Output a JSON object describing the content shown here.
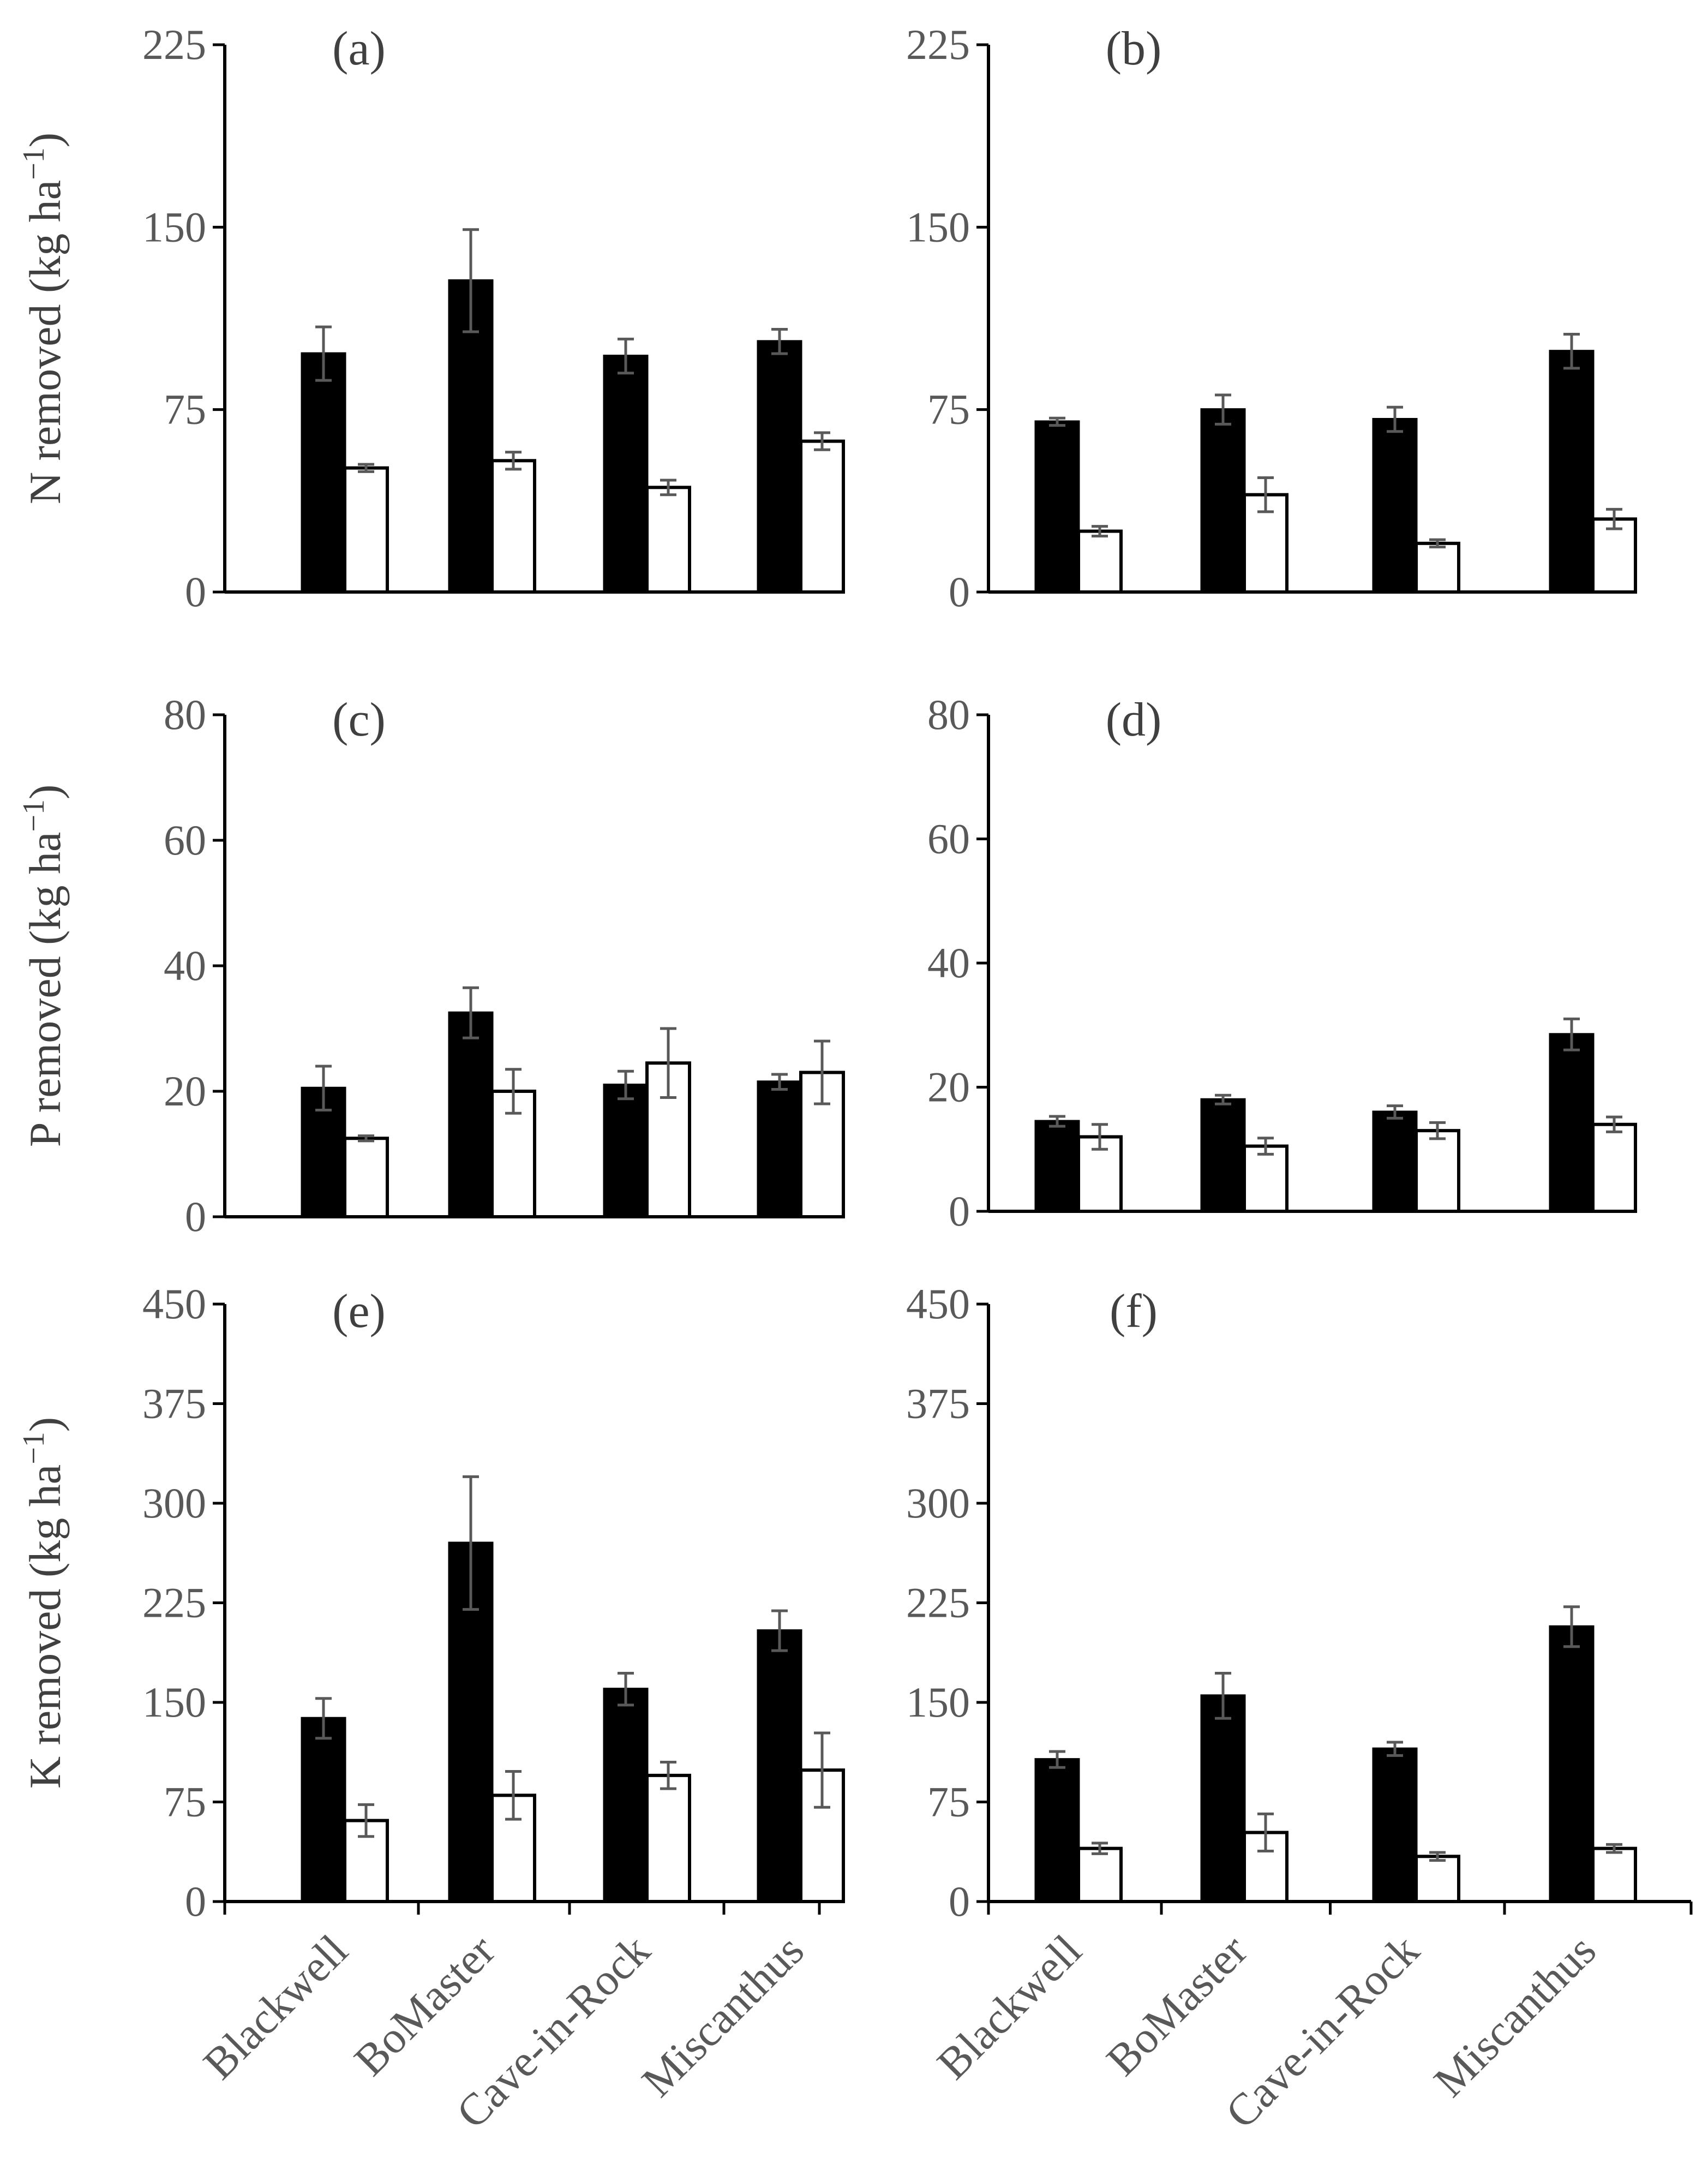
{
  "chart_data": [
    {
      "type": "bar",
      "panel": "(a)",
      "row": 0,
      "col": 0,
      "ylabel": "N removed (kg ha",
      "ylabel_sup": "−1",
      "ylabel_close": ")",
      "ylim": [
        0,
        225
      ],
      "yticks": [
        "0",
        "75",
        "150",
        "225"
      ],
      "ytick_values": [
        0,
        75,
        150,
        225
      ],
      "categories": [
        "Blackwell",
        "BoMaster",
        "Cave-in-Rock",
        "Miscanthus"
      ],
      "series": [
        {
          "name": "dark",
          "values": [
            98,
            128,
            97,
            103
          ],
          "errors": [
            11,
            21,
            7,
            5
          ]
        },
        {
          "name": "white",
          "values": [
            51,
            54,
            43,
            62
          ],
          "errors": [
            1.5,
            3.5,
            3,
            3.5
          ]
        }
      ]
    },
    {
      "type": "bar",
      "panel": "(b)",
      "row": 0,
      "col": 1,
      "ylim": [
        0,
        225
      ],
      "yticks": [
        "0",
        "75",
        "150",
        "225"
      ],
      "ytick_values": [
        0,
        75,
        150,
        225
      ],
      "categories": [
        "Blackwell",
        "BoMaster",
        "Cave-in-Rock",
        "Miscanthus"
      ],
      "series": [
        {
          "name": "dark",
          "values": [
            70,
            75,
            71,
            99
          ],
          "errors": [
            1.5,
            6,
            5,
            7
          ]
        },
        {
          "name": "white",
          "values": [
            25,
            40,
            20,
            30
          ],
          "errors": [
            2,
            7,
            1.5,
            4
          ]
        }
      ]
    },
    {
      "type": "bar",
      "panel": "(c)",
      "row": 1,
      "col": 0,
      "ylabel": "P removed (kg ha",
      "ylabel_sup": "−1",
      "ylabel_close": ")",
      "ylim": [
        0,
        80
      ],
      "yticks": [
        "0",
        "20",
        "40",
        "60",
        "80"
      ],
      "ytick_values": [
        0,
        20,
        40,
        60,
        80
      ],
      "categories": [
        "Blackwell",
        "BoMaster",
        "Cave-in-Rock",
        "Miscanthus"
      ],
      "series": [
        {
          "name": "dark",
          "values": [
            20.5,
            32.5,
            21,
            21.5
          ],
          "errors": [
            3.5,
            4,
            2.2,
            1.2
          ]
        },
        {
          "name": "white",
          "values": [
            12.5,
            20,
            24.5,
            23
          ],
          "errors": [
            0.4,
            3.5,
            5.5,
            5
          ]
        }
      ]
    },
    {
      "type": "bar",
      "panel": "(d)",
      "row": 1,
      "col": 1,
      "ylim": [
        0,
        80
      ],
      "yticks": [
        "0",
        "20",
        "40",
        "60",
        "80"
      ],
      "ytick_values": [
        0,
        20,
        40,
        60,
        80
      ],
      "categories": [
        "Blackwell",
        "BoMaster",
        "Cave-in-Rock",
        "Miscanthus"
      ],
      "series": [
        {
          "name": "dark",
          "values": [
            14.5,
            18,
            16,
            28.5
          ],
          "errors": [
            0.8,
            0.7,
            1,
            2.5
          ]
        },
        {
          "name": "white",
          "values": [
            12,
            10.5,
            13,
            14
          ],
          "errors": [
            2,
            1.3,
            1.3,
            1.2
          ]
        }
      ]
    },
    {
      "type": "bar",
      "panel": "(e)",
      "row": 2,
      "col": 0,
      "ylabel": "K removed (kg ha",
      "ylabel_sup": "−1",
      "ylabel_close": ")",
      "ylim": [
        0,
        450
      ],
      "yticks": [
        "0",
        "75",
        "150",
        "225",
        "300",
        "375",
        "450"
      ],
      "ytick_values": [
        0,
        75,
        150,
        225,
        300,
        375,
        450
      ],
      "categories": [
        "Blackwell",
        "BoMaster",
        "Cave-in-Rock",
        "Miscanthus"
      ],
      "series": [
        {
          "name": "dark",
          "values": [
            138,
            270,
            160,
            204
          ],
          "errors": [
            15,
            50,
            12,
            15
          ]
        },
        {
          "name": "white",
          "values": [
            61,
            80,
            95,
            99
          ],
          "errors": [
            12,
            18,
            10,
            28
          ]
        }
      ]
    },
    {
      "type": "bar",
      "panel": "(f)",
      "row": 2,
      "col": 1,
      "ylim": [
        0,
        450
      ],
      "yticks": [
        "0",
        "75",
        "150",
        "225",
        "300",
        "375",
        "450"
      ],
      "ytick_values": [
        0,
        75,
        150,
        225,
        300,
        375,
        450
      ],
      "categories": [
        "Blackwell",
        "BoMaster",
        "Cave-in-Rock",
        "Miscanthus"
      ],
      "series": [
        {
          "name": "dark",
          "values": [
            107,
            155,
            115,
            207
          ],
          "errors": [
            6,
            17,
            5,
            15
          ]
        },
        {
          "name": "white",
          "values": [
            40,
            52,
            34,
            40
          ],
          "errors": [
            4,
            14,
            3,
            3
          ]
        }
      ]
    }
  ]
}
